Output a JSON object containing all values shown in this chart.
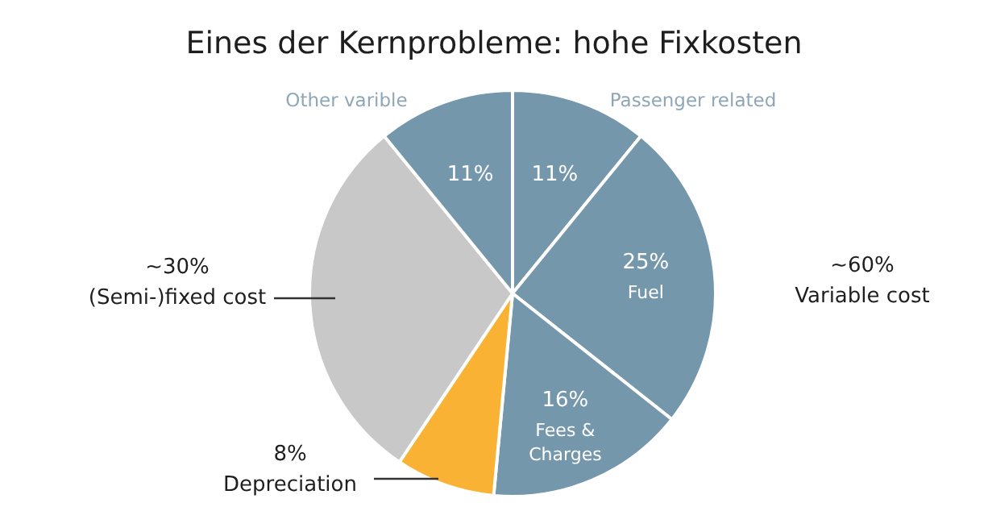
{
  "chart_data": {
    "type": "pie",
    "title": "Eines der Kernprobleme: hohe Fixkosten",
    "categories": [
      "Passenger related",
      "Fuel",
      "Fees & Charges",
      "Depreciation",
      "(Semi-)fixed cost",
      "Other varible"
    ],
    "values": [
      11,
      25,
      16,
      8,
      30,
      11
    ],
    "colors": [
      "#7597ac",
      "#7597ac",
      "#7597ac",
      "#f9b233",
      "#c8c8c8",
      "#7597ac"
    ],
    "value_labels": [
      "11%",
      "25%",
      "16%",
      "8%",
      "~30%",
      "11%"
    ],
    "annotations": [
      "~60%\nVariable cost"
    ]
  }
}
